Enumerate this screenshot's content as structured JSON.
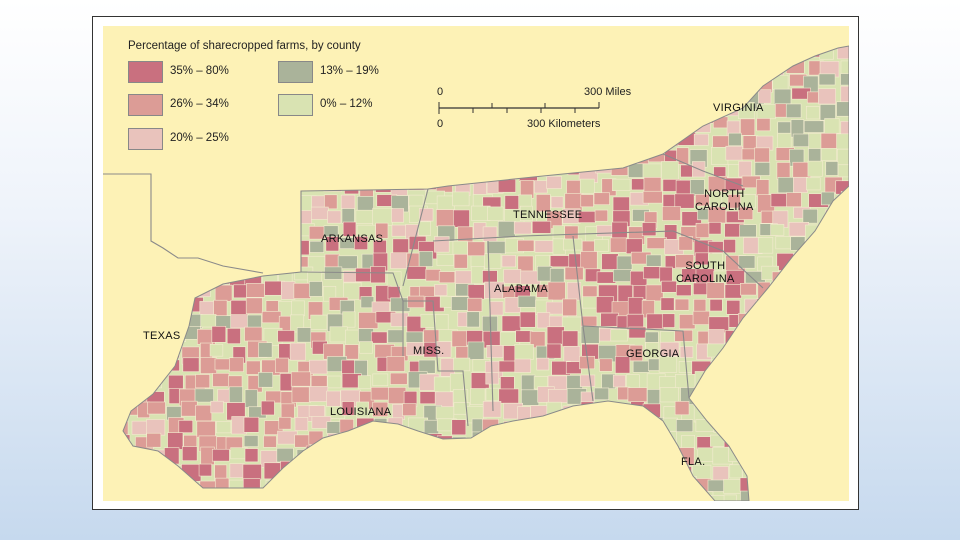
{
  "legend": {
    "title": "Percentage of sharecropped farms, by county",
    "items": [
      {
        "label": "35% – 80%",
        "color": "#c9707f"
      },
      {
        "label": "26% – 34%",
        "color": "#dc9c96"
      },
      {
        "label": "20% – 25%",
        "color": "#e9c3bc"
      },
      {
        "label": "13% – 19%",
        "color": "#aab39a"
      },
      {
        "label": "0% – 12%",
        "color": "#d9e3b2"
      }
    ]
  },
  "scale": {
    "zero_miles": "0",
    "miles": "300 Miles",
    "zero_km": "0",
    "km": "300 Kilometers"
  },
  "states": {
    "virginia": "VIRGINIA",
    "north_carolina": "NORTH\nCAROLINA",
    "tennessee": "TENNESSEE",
    "arkansas": "ARKANSAS",
    "south_carolina": "SOUTH\nCAROLINA",
    "alabama": "ALABAMA",
    "texas": "TEXAS",
    "miss": "MISS.",
    "georgia": "GEORGIA",
    "louisiana": "LOUISIANA",
    "fla": "FLA."
  },
  "colors": {
    "land_background": "#fdf2b6",
    "state_border": "#8a8a8a"
  }
}
